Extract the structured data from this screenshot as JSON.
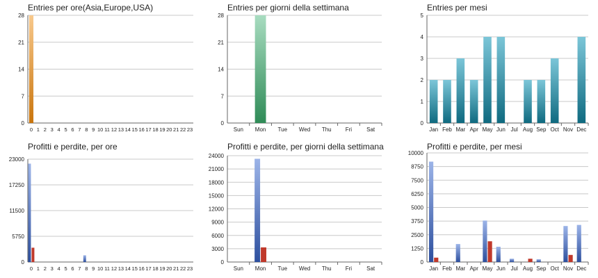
{
  "colors": {
    "orange_top": "#f8c98c",
    "orange_bottom": "#c9750d",
    "green_top": "#a8dcc0",
    "green_bottom": "#2f8b57",
    "teal_top": "#7cc6d8",
    "teal_bottom": "#0f6a80",
    "blue_top": "#9cb4e8",
    "blue_bottom": "#2d4f9e",
    "red": "#c0392b",
    "grid": "#c8c8c8",
    "axis": "#666666"
  },
  "chart_data": [
    {
      "type": "bar",
      "title": "Entries per ore(Asia,Europe,USA)",
      "categories": [
        "0",
        "1",
        "2",
        "3",
        "4",
        "5",
        "6",
        "7",
        "8",
        "9",
        "10",
        "11",
        "12",
        "13",
        "14",
        "15",
        "16",
        "17",
        "18",
        "19",
        "20",
        "21",
        "22",
        "23"
      ],
      "series": [
        {
          "values": [
            28,
            0,
            0,
            0,
            0,
            0,
            0,
            0,
            0,
            0,
            0,
            0,
            0,
            0,
            0,
            0,
            0,
            0,
            0,
            0,
            0,
            0,
            0,
            0
          ]
        }
      ],
      "yticks": [
        "0",
        "7",
        "14",
        "21",
        "28"
      ],
      "ylim": [
        0,
        28
      ],
      "grid": true
    },
    {
      "type": "bar",
      "title": "Entries per giorni della settimana",
      "categories": [
        "Sun",
        "Mon",
        "Tue",
        "Wed",
        "Thu",
        "Fri",
        "Sat"
      ],
      "series": [
        {
          "values": [
            0,
            28,
            0,
            0,
            0,
            0,
            0
          ]
        }
      ],
      "yticks": [
        "0",
        "7",
        "14",
        "21",
        "28"
      ],
      "ylim": [
        0,
        28
      ],
      "grid": true
    },
    {
      "type": "bar",
      "title": "Entries per mesi",
      "categories": [
        "Jan",
        "Feb",
        "Mar",
        "Apr",
        "May",
        "Jun",
        "Jul",
        "Aug",
        "Sep",
        "Oct",
        "Nov",
        "Dec"
      ],
      "series": [
        {
          "values": [
            2,
            2,
            3,
            2,
            4,
            4,
            0,
            2,
            2,
            3,
            0,
            4
          ]
        }
      ],
      "yticks": [
        "0",
        "1",
        "2",
        "3",
        "4",
        "5"
      ],
      "ylim": [
        0,
        5
      ],
      "grid": true
    },
    {
      "type": "bar",
      "title": "Profitti e perdite, per ore",
      "categories": [
        "0",
        "1",
        "2",
        "3",
        "4",
        "5",
        "6",
        "7",
        "8",
        "9",
        "10",
        "11",
        "12",
        "13",
        "14",
        "15",
        "16",
        "17",
        "18",
        "19",
        "20",
        "21",
        "22",
        "23"
      ],
      "series": [
        {
          "values": [
            22000,
            0,
            0,
            0,
            0,
            0,
            0,
            0,
            1500,
            0,
            0,
            0,
            0,
            0,
            0,
            0,
            0,
            0,
            0,
            0,
            0,
            0,
            0,
            0
          ]
        },
        {
          "values": [
            3200,
            0,
            0,
            0,
            0,
            0,
            0,
            0,
            0,
            0,
            0,
            0,
            0,
            0,
            0,
            0,
            0,
            0,
            0,
            0,
            0,
            0,
            0,
            0
          ]
        }
      ],
      "yticks": [
        "0",
        "5750",
        "11500",
        "17250",
        "23000"
      ],
      "ylim": [
        0,
        23000
      ],
      "grid": true
    },
    {
      "type": "bar",
      "title": "Profitti e perdite, per giorni della settimana",
      "categories": [
        "Sun",
        "Mon",
        "Tue",
        "Wed",
        "Thu",
        "Fri",
        "Sat"
      ],
      "series": [
        {
          "values": [
            0,
            23300,
            0,
            0,
            0,
            0,
            0
          ]
        },
        {
          "values": [
            0,
            3300,
            0,
            0,
            0,
            0,
            0
          ]
        }
      ],
      "yticks": [
        "0",
        "3000",
        "6000",
        "9000",
        "12000",
        "15000",
        "18000",
        "21000",
        "24000"
      ],
      "ylim": [
        0,
        24000
      ],
      "grid": true
    },
    {
      "type": "bar",
      "title": "Profitti e perdite, per mesi",
      "categories": [
        "Jan",
        "Feb",
        "Mar",
        "Apr",
        "May",
        "Jun",
        "Jul",
        "Aug",
        "Sep",
        "Oct",
        "Nov",
        "Dec"
      ],
      "series": [
        {
          "values": [
            9200,
            0,
            1650,
            0,
            3800,
            1400,
            300,
            0,
            250,
            0,
            3300,
            3400
          ]
        },
        {
          "values": [
            400,
            0,
            0,
            0,
            1900,
            0,
            0,
            300,
            0,
            0,
            650,
            0
          ]
        }
      ],
      "yticks": [
        "0",
        "1250",
        "2500",
        "3750",
        "5000",
        "6250",
        "7500",
        "8750",
        "10000"
      ],
      "ylim": [
        0,
        10000
      ],
      "grid": true
    }
  ]
}
